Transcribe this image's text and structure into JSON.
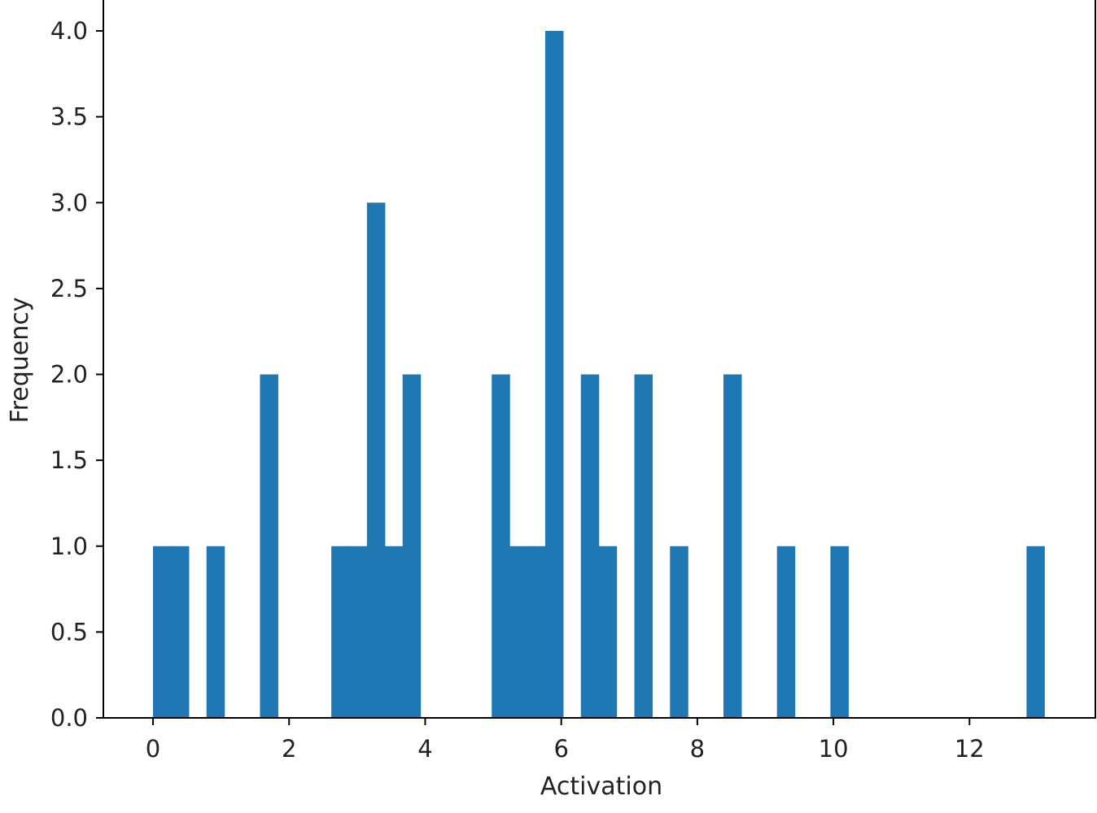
{
  "chart_data": {
    "type": "bar",
    "title": "",
    "xlabel": "Activation",
    "ylabel": "Frequency",
    "bar_color": "#1f77b4",
    "grid": false,
    "xlim": [
      -0.73,
      13.85
    ],
    "ylim": [
      0,
      4.18
    ],
    "x_ticks": [
      0,
      2,
      4,
      6,
      8,
      10,
      12
    ],
    "x_tick_labels": [
      "0",
      "2",
      "4",
      "6",
      "8",
      "10",
      "12"
    ],
    "y_ticks": [
      0,
      0.5,
      1,
      1.5,
      2,
      2.5,
      3,
      3.5,
      4
    ],
    "y_tick_labels": [
      "0.0",
      "0.5",
      "1.0",
      "1.5",
      "2.0",
      "2.5",
      "3.0",
      "3.5",
      "4.0"
    ],
    "bin_width": 0.262,
    "bins": [
      {
        "start": 0.0,
        "count": 1
      },
      {
        "start": 0.262,
        "count": 1
      },
      {
        "start": 0.786,
        "count": 1
      },
      {
        "start": 1.572,
        "count": 2
      },
      {
        "start": 2.62,
        "count": 1
      },
      {
        "start": 2.882,
        "count": 1
      },
      {
        "start": 3.144,
        "count": 3
      },
      {
        "start": 3.406,
        "count": 1
      },
      {
        "start": 3.668,
        "count": 2
      },
      {
        "start": 4.978,
        "count": 2
      },
      {
        "start": 5.24,
        "count": 1
      },
      {
        "start": 5.502,
        "count": 1
      },
      {
        "start": 5.764,
        "count": 4
      },
      {
        "start": 6.288,
        "count": 2
      },
      {
        "start": 6.55,
        "count": 1
      },
      {
        "start": 7.074,
        "count": 2
      },
      {
        "start": 7.598,
        "count": 1
      },
      {
        "start": 8.384,
        "count": 2
      },
      {
        "start": 9.17,
        "count": 1
      },
      {
        "start": 9.956,
        "count": 1
      },
      {
        "start": 12.838,
        "count": 1
      }
    ]
  }
}
